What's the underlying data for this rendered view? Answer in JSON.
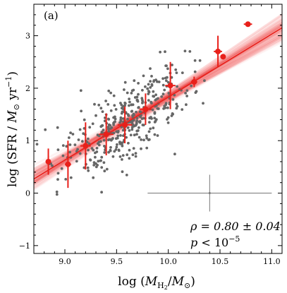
{
  "chart_data": {
    "type": "scatter",
    "panel_label": "(a)",
    "xlabel": "log (M_H2/M_⊙)",
    "ylabel": "log (SFR / M_⊙ yr^-1)",
    "xlim": [
      8.7,
      11.1
    ],
    "ylim": [
      -1.15,
      3.6
    ],
    "xticks": [
      9.0,
      9.5,
      10.0,
      10.5,
      11.0
    ],
    "xticklabels": [
      "9.0",
      "9.5",
      "10.0",
      "10.5",
      "11.0"
    ],
    "yticks": [
      -1,
      0,
      1,
      2,
      3
    ],
    "yticklabels": [
      "−1",
      "0",
      "1",
      "2",
      "3"
    ],
    "fit": {
      "slope": 1.2,
      "intercept": -10.17,
      "x_range": [
        8.7,
        11.1
      ]
    },
    "binned": {
      "x": [
        8.84,
        9.03,
        9.2,
        9.4,
        9.58,
        9.78,
        10.02,
        10.25,
        10.48,
        10.53,
        10.77
      ],
      "y": [
        0.6,
        0.55,
        0.9,
        1.12,
        1.3,
        1.6,
        2.05,
        2.12,
        2.7,
        2.6,
        3.22
      ],
      "yerr": [
        0.25,
        0.45,
        0.45,
        0.4,
        0.35,
        0.3,
        0.45,
        0.1,
        0.3,
        0.05,
        0.05
      ],
      "xerr": [
        0.02,
        0.03,
        0.05,
        0.07,
        0.07,
        0.06,
        0.05,
        0.03,
        0.04,
        0.02,
        0.04
      ]
    },
    "typical_error": {
      "x": 10.4,
      "y": 0.0,
      "xerr": 0.6,
      "yerr": 0.35
    },
    "annotation": {
      "rho": "ρ = 0.80 ± 0.04",
      "p": "p < 10^−5"
    },
    "colors": {
      "points": "#666666",
      "fit": "#e8201a",
      "binned": "#e8201a",
      "errorbar": "#777777"
    },
    "grid": false,
    "n_points": 420
  }
}
